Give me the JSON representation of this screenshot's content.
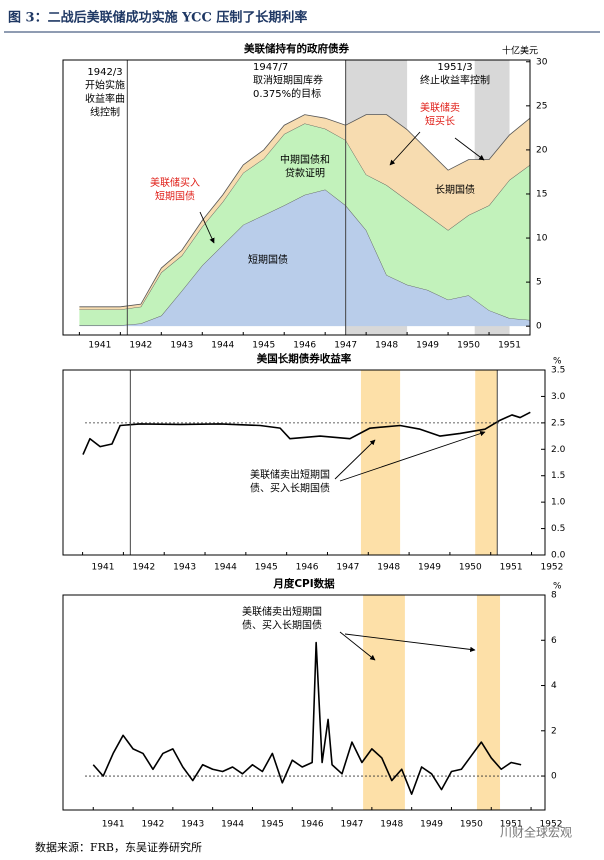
{
  "title": "图 3：二战后美联储成功实施 YCC 压制了长期利率",
  "source": "数据来源：FRB，东吴证券研究所",
  "watermark": "川财全球宏观",
  "chart_data": [
    {
      "type": "area",
      "title": "美联储持有的政府债券",
      "unit": "十亿美元",
      "x": [
        1941,
        1941.5,
        1942,
        1942.5,
        1943,
        1943.5,
        1944,
        1944.5,
        1945,
        1945.5,
        1946,
        1946.5,
        1947,
        1947.5,
        1948,
        1948.5,
        1949,
        1949.5,
        1950,
        1950.5,
        1951,
        1951.5,
        1952
      ],
      "series": [
        {
          "color": "#b9cdea",
          "values": [
            0.1,
            0.1,
            0.1,
            0.3,
            1.2,
            4,
            6.9,
            9.2,
            11.5,
            12.6,
            13.7,
            14.9,
            15.5,
            13.7,
            10.9,
            5.8,
            4.7,
            4.1,
            3,
            3.5,
            1.8,
            0.9,
            0.7
          ]
        },
        {
          "color": "#c2f2bb",
          "values": [
            1.8,
            1.8,
            1.8,
            1.9,
            4.9,
            4.0,
            4.4,
            4.9,
            5.9,
            6.4,
            8.1,
            8.1,
            6.9,
            7.4,
            6.3,
            10.2,
            9.6,
            8.5,
            7.9,
            9.1,
            11.9,
            15.7,
            17.6
          ]
        },
        {
          "color": "#f7dcb0",
          "values": [
            0.3,
            0.3,
            0.3,
            0.3,
            0.5,
            0.6,
            0.7,
            0.8,
            0.9,
            1,
            1,
            1,
            1.2,
            1.7,
            6.8,
            8,
            8,
            7.4,
            6.8,
            6.3,
            5.2,
            5.1,
            5.3
          ]
        }
      ],
      "xlim": [
        1940.6,
        1952
      ],
      "ylim": [
        -1,
        30.2
      ],
      "xticks": [
        1941,
        1942,
        1943,
        1944,
        1945,
        1946,
        1947,
        1948,
        1949,
        1950,
        1951
      ],
      "yticks": [
        0,
        5,
        10,
        15,
        20,
        25,
        30
      ],
      "vlines": [
        1942.17,
        1947.5
      ],
      "shaded": [
        [
          1947.5,
          1949
        ],
        [
          1950.65,
          1951.5
        ]
      ],
      "shade_color": "#a9a9a9",
      "annotations": [
        [
          "1942/3",
          "开始实施",
          "收益率曲",
          "线控制"
        ],
        [
          "1947/7",
          "取消短期国库券",
          "0.375%的目标"
        ],
        [
          "1951/3",
          "终止收益率控制"
        ],
        [
          "美联储买入",
          "短期国债"
        ],
        [
          "中期国债和",
          "贷款证明"
        ],
        [
          "美联储卖",
          "短买长"
        ],
        [
          "长期国债"
        ],
        [
          "短期国债"
        ]
      ]
    },
    {
      "type": "line",
      "title": "美国长期债券收益率",
      "unit": "%",
      "color": "#000000",
      "x": [
        1941.01,
        1941.18,
        1941.43,
        1941.72,
        1941.92,
        1942.41,
        1943.39,
        1944.37,
        1945.35,
        1945.84,
        1946.08,
        1946.82,
        1947.55,
        1948.04,
        1948.78,
        1949.27,
        1949.76,
        1950.25,
        1950.86,
        1951.23,
        1951.52,
        1951.72,
        1951.97
      ],
      "values": [
        1.9,
        2.2,
        2.05,
        2.1,
        2.45,
        2.48,
        2.47,
        2.48,
        2.45,
        2.4,
        2.2,
        2.25,
        2.2,
        2.4,
        2.45,
        2.38,
        2.25,
        2.3,
        2.38,
        2.55,
        2.65,
        2.6,
        2.7
      ],
      "xlim": [
        1940.52,
        1952.33
      ],
      "ylim": [
        0,
        3.5
      ],
      "xticks": [
        1941,
        1942,
        1943,
        1944,
        1945,
        1946,
        1947,
        1948,
        1949,
        1950,
        1951,
        1952
      ],
      "yticks": [
        {
          "value": 0,
          "label": "0.0"
        },
        {
          "value": 0.5,
          "label": "0.5"
        },
        {
          "value": 1,
          "label": "1.0"
        },
        {
          "value": 1.5,
          "label": "1.5"
        },
        {
          "value": 2,
          "label": "2.0"
        },
        {
          "value": 2.5,
          "label": "2.5"
        },
        {
          "value": 3,
          "label": "3.0"
        },
        {
          "value": 3.5,
          "label": "3.5"
        }
      ],
      "vlines": [
        1942.17,
        1951.16
      ],
      "shaded": [
        [
          1947.82,
          1948.78
        ],
        [
          1950.62,
          1951.16
        ]
      ],
      "shade_color": "#fde0a8",
      "hline": 2.5,
      "annotations": [
        [
          "美联储卖出短期国",
          "债、买入长期国债"
        ]
      ]
    },
    {
      "type": "line",
      "title": "月度CPI数据",
      "unit": "%",
      "color": "#000000",
      "x": [
        1941.0,
        1941.25,
        1941.5,
        1941.75,
        1942.0,
        1942.25,
        1942.5,
        1942.75,
        1943.0,
        1943.25,
        1943.5,
        1943.75,
        1944.0,
        1944.25,
        1944.5,
        1944.75,
        1945.0,
        1945.25,
        1945.5,
        1945.75,
        1946.0,
        1946.25,
        1946.5,
        1946.6,
        1946.75,
        1946.9,
        1947.0,
        1947.25,
        1947.5,
        1947.75,
        1948.0,
        1948.25,
        1948.5,
        1948.75,
        1949.0,
        1949.25,
        1949.5,
        1949.75,
        1950.0,
        1950.25,
        1950.5,
        1950.75,
        1951.0,
        1951.25,
        1951.5,
        1951.75
      ],
      "values": [
        0.5,
        0.0,
        1.0,
        1.8,
        1.2,
        1.0,
        0.3,
        1.0,
        1.2,
        0.4,
        -0.2,
        0.5,
        0.3,
        0.2,
        0.4,
        0.1,
        0.5,
        0.2,
        1.0,
        -0.3,
        0.7,
        0.4,
        0.6,
        5.9,
        0.6,
        2.5,
        0.5,
        0.1,
        1.5,
        0.6,
        1.2,
        0.8,
        -0.2,
        0.3,
        -0.8,
        0.4,
        0.1,
        -0.6,
        0.2,
        0.3,
        0.9,
        1.5,
        0.8,
        0.3,
        0.6,
        0.5
      ],
      "xlim": [
        1940.24,
        1952.35
      ],
      "ylim": [
        -1.5,
        8
      ],
      "xticks": [
        1941,
        1942,
        1943,
        1944,
        1945,
        1946,
        1947,
        1948,
        1949,
        1950,
        1951,
        1952
      ],
      "yticks": [
        0,
        2,
        4,
        6,
        8
      ],
      "shaded": [
        [
          1947.78,
          1948.83
        ],
        [
          1950.64,
          1951.22
        ]
      ],
      "shade_color": "#fde0a8",
      "hline": 0,
      "annotations": [
        [
          "美联储卖出短期国",
          "债、买入长期国债"
        ]
      ]
    }
  ]
}
